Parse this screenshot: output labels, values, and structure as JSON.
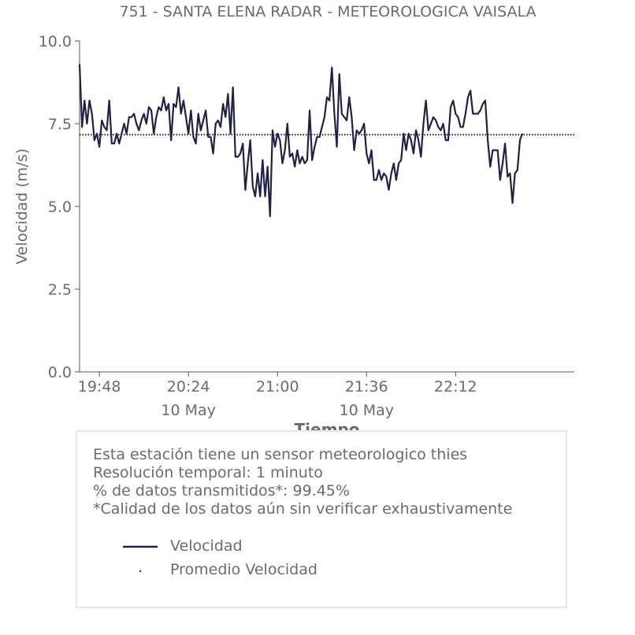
{
  "chart_data": {
    "type": "line",
    "title": "751 - SANTA ELENA RADAR - METEOROLOGICA VAISALA",
    "xlabel": "Tiempo",
    "ylabel": "Velocidad (m/s)",
    "ylim": [
      0,
      10.0
    ],
    "yticks": [
      "0.0",
      "2.5",
      "5.0",
      "7.5",
      "10.0"
    ],
    "xrange": [
      "19:40",
      "23:00"
    ],
    "xticks": [
      {
        "time": "19:48",
        "label": "19:48",
        "sub": ""
      },
      {
        "time": "20:24",
        "label": "20:24",
        "sub": "10 May"
      },
      {
        "time": "21:00",
        "label": "21:00",
        "sub": ""
      },
      {
        "time": "21:36",
        "label": "21:36",
        "sub": "10 May"
      },
      {
        "time": "22:12",
        "label": "22:12",
        "sub": ""
      }
    ],
    "grid": false,
    "series": [
      {
        "name": "Velocidad",
        "color": "#1f2147",
        "start_time": "19:40",
        "step_minutes": 1,
        "values": [
          9.3,
          7.4,
          8.2,
          7.5,
          8.2,
          7.8,
          7.0,
          7.2,
          6.8,
          7.6,
          7.4,
          7.3,
          8.2,
          6.9,
          6.9,
          7.2,
          6.9,
          7.2,
          7.5,
          7.2,
          7.7,
          7.7,
          7.8,
          7.5,
          7.3,
          7.6,
          7.8,
          7.5,
          8.0,
          7.9,
          7.2,
          7.7,
          8.0,
          7.9,
          8.3,
          7.9,
          8.1,
          7.0,
          8.1,
          8.0,
          8.6,
          7.8,
          8.2,
          7.7,
          7.2,
          7.9,
          7.1,
          6.9,
          7.8,
          7.3,
          7.6,
          7.9,
          7.1,
          7.1,
          6.6,
          7.5,
          7.6,
          7.4,
          8.1,
          7.7,
          8.4,
          7.2,
          8.6,
          6.5,
          6.5,
          6.6,
          6.9,
          5.5,
          6.3,
          7.0,
          5.6,
          5.3,
          6.0,
          5.3,
          6.4,
          5.3,
          6.2,
          4.7,
          7.3,
          6.8,
          7.2,
          7.0,
          6.3,
          6.7,
          7.5,
          6.5,
          6.6,
          6.2,
          6.7,
          6.3,
          6.5,
          6.3,
          6.4,
          7.9,
          6.4,
          6.8,
          7.1,
          7.1,
          7.4,
          7.7,
          8.3,
          8.2,
          9.2,
          7.8,
          6.8,
          9.0,
          7.8,
          7.7,
          7.6,
          8.3,
          7.7,
          6.7,
          7.3,
          7.2,
          7.3,
          7.5,
          6.6,
          6.3,
          6.7,
          5.8,
          5.8,
          6.1,
          5.8,
          6.0,
          5.9,
          5.5,
          6.0,
          6.3,
          5.8,
          6.3,
          6.4,
          7.2,
          6.7,
          7.2,
          7.0,
          6.6,
          7.3,
          7.0,
          6.5,
          7.5,
          8.2,
          7.3,
          7.5,
          7.7,
          7.6,
          7.4,
          7.3,
          7.5,
          7.0,
          7.0,
          8.0,
          8.2,
          7.8,
          7.7,
          7.4,
          7.4,
          7.8,
          8.3,
          8.5,
          7.8,
          7.8,
          7.8,
          7.9,
          8.1,
          8.2,
          7.0,
          6.2,
          6.7,
          6.7,
          6.7,
          5.8,
          6.3,
          6.9,
          5.9,
          6.0,
          5.1,
          6.0,
          6.1,
          7.0,
          7.2
        ]
      },
      {
        "name": "Promedio Velocidad",
        "color": "#1f2147",
        "style": "dotted",
        "value": 7.17
      }
    ]
  },
  "info": {
    "lines": [
      "Esta estación tiene un sensor meteorologico thies",
      "Resolución temporal: 1 minuto",
      "% de datos transmitidos*: 99.45%",
      "*Calidad de los datos aún sin verificar exhaustivamente"
    ]
  }
}
